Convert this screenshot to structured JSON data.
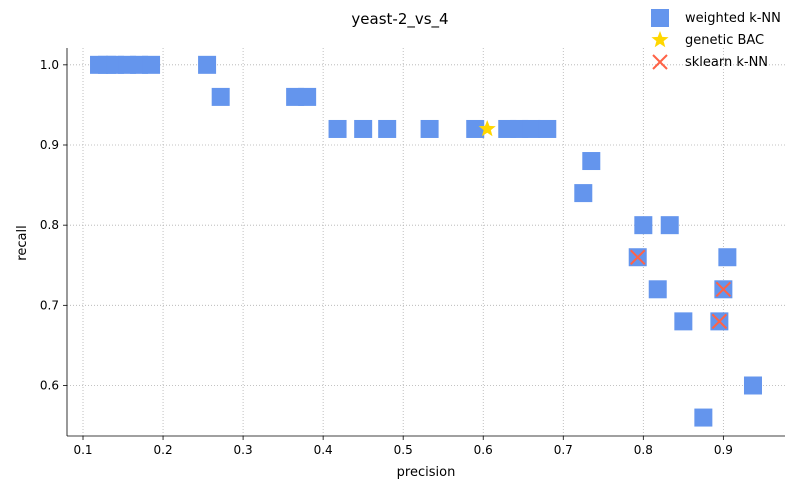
{
  "chart_data": {
    "type": "scatter",
    "title": "yeast-2_vs_4",
    "xlabel": "precision",
    "ylabel": "recall",
    "xlim": [
      0.08,
      0.977
    ],
    "ylim": [
      0.537,
      1.021
    ],
    "xticks": [
      0.1,
      0.2,
      0.3,
      0.4,
      0.5,
      0.6,
      0.7,
      0.8,
      0.9
    ],
    "xtick_labels": [
      "0.1",
      "0.2",
      "0.3",
      "0.4",
      "0.5",
      "0.6",
      "0.7",
      "0.8",
      "0.9"
    ],
    "yticks": [
      0.6,
      0.7,
      0.8,
      0.9,
      1.0
    ],
    "ytick_labels": [
      "0.6",
      "0.7",
      "0.8",
      "0.9",
      "1.0"
    ],
    "grid": true,
    "legend_position": "top-right",
    "series": [
      {
        "name": "weighted k-NN",
        "marker": "square",
        "color": "#6495ed",
        "points": [
          [
            0.12,
            1.0
          ],
          [
            0.13,
            1.0
          ],
          [
            0.14,
            1.0
          ],
          [
            0.155,
            1.0
          ],
          [
            0.17,
            1.0
          ],
          [
            0.185,
            1.0
          ],
          [
            0.255,
            1.0
          ],
          [
            0.272,
            0.96
          ],
          [
            0.365,
            0.96
          ],
          [
            0.38,
            0.96
          ],
          [
            0.418,
            0.92
          ],
          [
            0.45,
            0.92
          ],
          [
            0.48,
            0.92
          ],
          [
            0.533,
            0.92
          ],
          [
            0.59,
            0.92
          ],
          [
            0.63,
            0.92
          ],
          [
            0.645,
            0.92
          ],
          [
            0.66,
            0.92
          ],
          [
            0.68,
            0.92
          ],
          [
            0.735,
            0.88
          ],
          [
            0.725,
            0.84
          ],
          [
            0.8,
            0.8
          ],
          [
            0.833,
            0.8
          ],
          [
            0.793,
            0.76
          ],
          [
            0.905,
            0.76
          ],
          [
            0.818,
            0.72
          ],
          [
            0.9,
            0.72
          ],
          [
            0.85,
            0.68
          ],
          [
            0.895,
            0.68
          ],
          [
            0.875,
            0.56
          ],
          [
            0.937,
            0.6
          ]
        ]
      },
      {
        "name": "genetic BAC",
        "marker": "star",
        "color": "#ffd700",
        "points": [
          [
            0.605,
            0.92
          ]
        ]
      },
      {
        "name": "sklearn k-NN",
        "marker": "x",
        "color": "#ff6347",
        "points": [
          [
            0.793,
            0.76
          ],
          [
            0.9,
            0.72
          ],
          [
            0.895,
            0.68
          ]
        ]
      }
    ]
  }
}
